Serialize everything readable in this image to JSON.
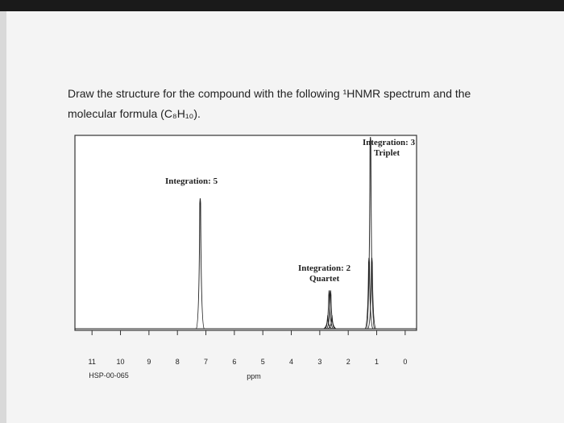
{
  "question": {
    "lines": [
      "Draw the structure for the compound with the following ¹HNMR spectrum and the",
      "molecular formula (C₈H₁₀)."
    ]
  },
  "chart_data": {
    "type": "nmr",
    "xlabel": "ppm",
    "code": "HSP-00-065",
    "xlim": [
      11.6,
      -0.4
    ],
    "xticks": [
      11,
      10,
      9,
      8,
      7,
      6,
      5,
      4,
      3,
      2,
      1,
      0
    ],
    "ylim": [
      0,
      1
    ],
    "color": "#222222",
    "peaks": {
      "x": [
        7.2,
        2.72,
        2.67,
        2.62,
        2.57,
        1.27,
        1.22,
        1.17
      ],
      "values": [
        0.68,
        0.07,
        0.2,
        0.2,
        0.07,
        0.37,
        1.0,
        0.37
      ]
    },
    "annotations": [
      [
        "Integration: 5"
      ],
      [
        "Integration: 2",
        "Quartet"
      ],
      [
        "Integration: 3",
        "Triplet"
      ]
    ]
  }
}
